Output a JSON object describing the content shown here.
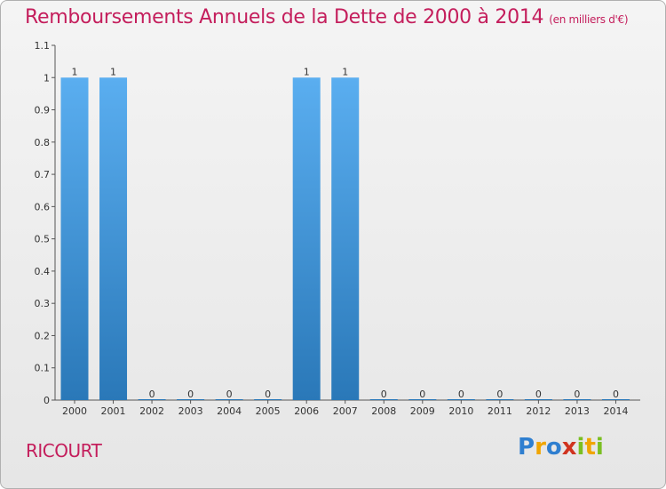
{
  "title": "Remboursements Annuels de la Dette de 2000 à 2014",
  "unit": "(en milliers d'€)",
  "commune": "RICOURT",
  "logo": [
    "P",
    "r",
    "o",
    "x",
    "i",
    "t",
    "i"
  ],
  "chart_data": {
    "type": "bar",
    "categories": [
      "2000",
      "2001",
      "2002",
      "2003",
      "2004",
      "2005",
      "2006",
      "2007",
      "2008",
      "2009",
      "2010",
      "2011",
      "2012",
      "2013",
      "2014"
    ],
    "values": [
      1,
      1,
      0,
      0,
      0,
      0,
      1,
      1,
      0,
      0,
      0,
      0,
      0,
      0,
      0
    ],
    "value_labels": [
      "1",
      "1",
      "0",
      "0",
      "0",
      "0",
      "1",
      "1",
      "0",
      "0",
      "0",
      "0",
      "0",
      "0",
      "0"
    ],
    "ylim": [
      0,
      1.1
    ],
    "yticks": [
      0,
      0.1,
      0.2,
      0.3,
      0.4,
      0.5,
      0.6,
      0.7,
      0.8,
      0.9,
      1,
      1.1
    ],
    "ytick_labels": [
      "0",
      "0.1",
      "0.2",
      "0.3",
      "0.4",
      "0.5",
      "0.6",
      "0.7",
      "0.8",
      "0.9",
      "1",
      "1.1"
    ],
    "grid": false,
    "colors": {
      "bar_top": "#5aaef0",
      "bar_bottom": "#2a78b8",
      "title": "#c41e5c"
    }
  }
}
